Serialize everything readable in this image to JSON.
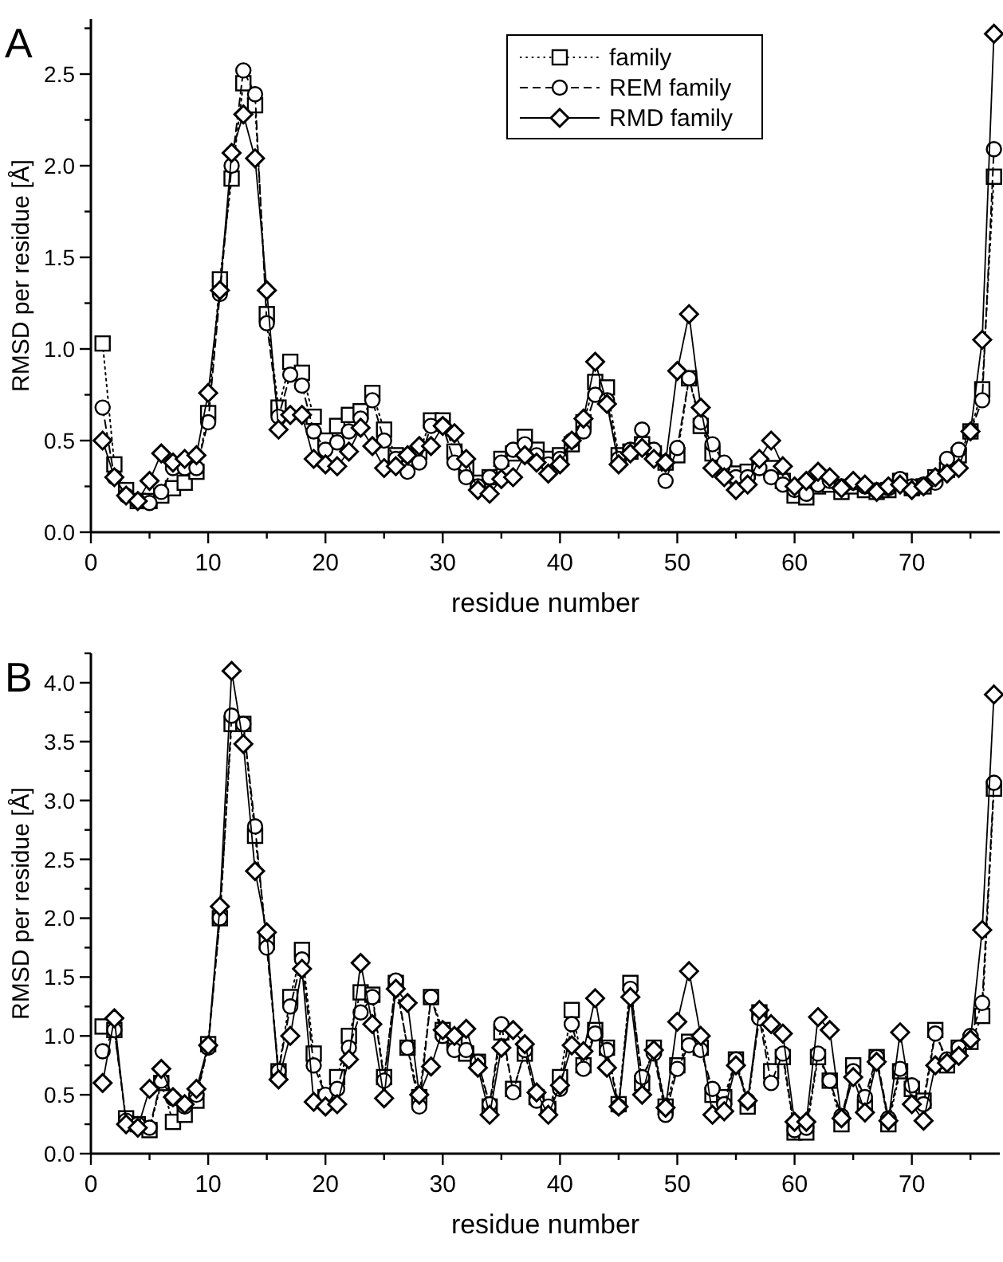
{
  "chart_data": [
    {
      "type": "line",
      "title": "A",
      "xlabel": "residue number",
      "ylabel": "RMSD per residue [Å]",
      "x": [
        1,
        2,
        3,
        4,
        5,
        6,
        7,
        8,
        9,
        10,
        11,
        12,
        13,
        14,
        15,
        16,
        17,
        18,
        19,
        20,
        21,
        22,
        23,
        24,
        25,
        26,
        27,
        28,
        29,
        30,
        31,
        32,
        33,
        34,
        35,
        36,
        37,
        38,
        39,
        40,
        41,
        42,
        43,
        44,
        45,
        46,
        47,
        48,
        49,
        50,
        51,
        52,
        53,
        54,
        55,
        56,
        57,
        58,
        59,
        60,
        61,
        62,
        63,
        64,
        65,
        66,
        67,
        68,
        69,
        70,
        71,
        72,
        73,
        74,
        75,
        76,
        77
      ],
      "xlim": [
        0,
        77.5
      ],
      "xticks": [
        0,
        {
          "value": 5,
          "label": null
        },
        10,
        {
          "value": 15,
          "label": null
        },
        20,
        {
          "value": 25,
          "label": null
        },
        30,
        {
          "value": 35,
          "label": null
        },
        40,
        {
          "value": 45,
          "label": null
        },
        50,
        {
          "value": 55,
          "label": null
        },
        60,
        {
          "value": 65,
          "label": null
        },
        70,
        {
          "value": 75,
          "label": null
        }
      ],
      "ylim": [
        0,
        2.8
      ],
      "yticks": [
        {
          "value": 0,
          "label": "0.0"
        },
        {
          "value": 0.25,
          "label": null
        },
        {
          "value": 0.5,
          "label": "0.5"
        },
        {
          "value": 0.75,
          "label": null
        },
        {
          "value": 1,
          "label": "1.0"
        },
        {
          "value": 1.25,
          "label": null
        },
        {
          "value": 1.5,
          "label": "1.5"
        },
        {
          "value": 1.75,
          "label": null
        },
        {
          "value": 2,
          "label": "2.0"
        },
        {
          "value": 2.25,
          "label": null
        },
        {
          "value": 2.5,
          "label": "2.5"
        },
        {
          "value": 2.75,
          "label": null
        }
      ],
      "grid": false,
      "legend": "top right",
      "series": [
        {
          "name": "family",
          "color": "#000000",
          "marker": "square",
          "line_style": "dotted",
          "values": [
            1.03,
            0.37,
            0.23,
            0.17,
            0.17,
            0.2,
            0.24,
            0.27,
            0.33,
            0.65,
            1.38,
            1.93,
            2.45,
            2.33,
            1.19,
            0.68,
            0.93,
            0.87,
            0.63,
            0.5,
            0.58,
            0.64,
            0.66,
            0.76,
            0.56,
            0.42,
            0.4,
            0.44,
            0.61,
            0.61,
            0.44,
            0.35,
            0.27,
            0.3,
            0.4,
            0.43,
            0.52,
            0.45,
            0.4,
            0.42,
            0.48,
            0.6,
            0.82,
            0.79,
            0.42,
            0.44,
            0.48,
            0.43,
            0.38,
            0.42,
            0.84,
            0.58,
            0.43,
            0.35,
            0.32,
            0.33,
            0.37,
            0.35,
            0.28,
            0.2,
            0.19,
            0.25,
            0.26,
            0.22,
            0.25,
            0.23,
            0.22,
            0.23,
            0.28,
            0.24,
            0.25,
            0.3,
            0.34,
            0.42,
            0.55,
            0.78,
            1.94
          ]
        },
        {
          "name": "REM family",
          "color": "#000000",
          "marker": "circle",
          "line_style": "dashed",
          "values": [
            0.68,
            0.3,
            0.2,
            0.17,
            0.16,
            0.22,
            0.35,
            0.35,
            0.35,
            0.6,
            1.3,
            2.0,
            2.52,
            2.39,
            1.14,
            0.63,
            0.86,
            0.8,
            0.55,
            0.45,
            0.49,
            0.55,
            0.62,
            0.72,
            0.5,
            0.4,
            0.33,
            0.38,
            0.58,
            0.58,
            0.38,
            0.3,
            0.25,
            0.3,
            0.38,
            0.45,
            0.48,
            0.42,
            0.37,
            0.4,
            0.5,
            0.55,
            0.75,
            0.72,
            0.4,
            0.45,
            0.56,
            0.45,
            0.28,
            0.46,
            0.84,
            0.6,
            0.48,
            0.38,
            0.3,
            0.3,
            0.35,
            0.3,
            0.26,
            0.23,
            0.21,
            0.26,
            0.28,
            0.25,
            0.27,
            0.25,
            0.23,
            0.24,
            0.29,
            0.25,
            0.26,
            0.27,
            0.4,
            0.45,
            0.55,
            0.72,
            2.09
          ]
        },
        {
          "name": "RMD family",
          "color": "#000000",
          "marker": "diamond",
          "line_style": "solid",
          "values": [
            0.5,
            0.3,
            0.2,
            0.17,
            0.28,
            0.43,
            0.38,
            0.4,
            0.42,
            0.76,
            1.32,
            2.07,
            2.28,
            2.04,
            1.32,
            0.56,
            0.64,
            0.64,
            0.4,
            0.37,
            0.36,
            0.44,
            0.57,
            0.47,
            0.35,
            0.36,
            0.42,
            0.47,
            0.47,
            0.58,
            0.54,
            0.4,
            0.23,
            0.21,
            0.29,
            0.3,
            0.42,
            0.38,
            0.32,
            0.37,
            0.5,
            0.62,
            0.93,
            0.7,
            0.37,
            0.43,
            0.46,
            0.4,
            0.38,
            0.88,
            1.19,
            0.68,
            0.35,
            0.3,
            0.23,
            0.26,
            0.4,
            0.5,
            0.36,
            0.25,
            0.28,
            0.33,
            0.3,
            0.24,
            0.28,
            0.26,
            0.22,
            0.25,
            0.26,
            0.23,
            0.25,
            0.3,
            0.32,
            0.35,
            0.55,
            1.05,
            2.72
          ]
        }
      ]
    },
    {
      "type": "line",
      "title": "B",
      "xlabel": "residue number",
      "ylabel": "RMSD per residue [Å]",
      "x": [
        1,
        2,
        3,
        4,
        5,
        6,
        7,
        8,
        9,
        10,
        11,
        12,
        13,
        14,
        15,
        16,
        17,
        18,
        19,
        20,
        21,
        22,
        23,
        24,
        25,
        26,
        27,
        28,
        29,
        30,
        31,
        32,
        33,
        34,
        35,
        36,
        37,
        38,
        39,
        40,
        41,
        42,
        43,
        44,
        45,
        46,
        47,
        48,
        49,
        50,
        51,
        52,
        53,
        54,
        55,
        56,
        57,
        58,
        59,
        60,
        61,
        62,
        63,
        64,
        65,
        66,
        67,
        68,
        69,
        70,
        71,
        72,
        73,
        74,
        75,
        76,
        77
      ],
      "xlim": [
        0,
        77.5
      ],
      "xticks": [
        0,
        {
          "value": 5,
          "label": null
        },
        10,
        {
          "value": 15,
          "label": null
        },
        20,
        {
          "value": 25,
          "label": null
        },
        30,
        {
          "value": 35,
          "label": null
        },
        40,
        {
          "value": 45,
          "label": null
        },
        50,
        {
          "value": 55,
          "label": null
        },
        60,
        {
          "value": 65,
          "label": null
        },
        70,
        {
          "value": 75,
          "label": null
        }
      ],
      "ylim": [
        0,
        4.25
      ],
      "yticks": [
        {
          "value": 0,
          "label": "0.0"
        },
        {
          "value": 0.25,
          "label": null
        },
        {
          "value": 0.5,
          "label": "0.5"
        },
        {
          "value": 0.75,
          "label": null
        },
        {
          "value": 1,
          "label": "1.0"
        },
        {
          "value": 1.25,
          "label": null
        },
        {
          "value": 1.5,
          "label": "1.5"
        },
        {
          "value": 1.75,
          "label": null
        },
        {
          "value": 2,
          "label": "2.0"
        },
        {
          "value": 2.25,
          "label": null
        },
        {
          "value": 2.5,
          "label": "2.5"
        },
        {
          "value": 2.75,
          "label": null
        },
        {
          "value": 3,
          "label": "3.0"
        },
        {
          "value": 3.25,
          "label": null
        },
        {
          "value": 3.5,
          "label": "3.5"
        },
        {
          "value": 3.75,
          "label": null
        },
        {
          "value": 4,
          "label": "4.0"
        },
        {
          "value": 4.25,
          "label": null
        }
      ],
      "grid": false,
      "legend": false,
      "series": [
        {
          "color": "#000000",
          "marker": "square",
          "line_style": "dotted",
          "values": [
            1.08,
            1.05,
            0.3,
            0.25,
            0.2,
            0.6,
            0.27,
            0.33,
            0.45,
            0.93,
            2.0,
            3.65,
            3.65,
            2.7,
            1.8,
            0.7,
            1.33,
            1.73,
            0.85,
            0.48,
            0.65,
            1.0,
            1.37,
            1.35,
            0.65,
            1.45,
            0.9,
            0.48,
            1.33,
            1.05,
            0.95,
            0.85,
            0.78,
            0.4,
            1.03,
            0.55,
            0.85,
            0.48,
            0.38,
            0.65,
            1.22,
            0.75,
            1.05,
            0.9,
            0.42,
            1.45,
            0.6,
            0.9,
            0.4,
            0.75,
            0.95,
            0.9,
            0.5,
            0.48,
            0.8,
            0.4,
            1.2,
            0.7,
            0.82,
            0.18,
            0.18,
            0.82,
            0.62,
            0.25,
            0.75,
            0.4,
            0.82,
            0.25,
            0.7,
            0.55,
            0.45,
            1.05,
            0.75,
            0.9,
            0.95,
            1.17,
            3.1
          ]
        },
        {
          "color": "#000000",
          "marker": "circle",
          "line_style": "dashed",
          "values": [
            0.87,
            1.05,
            0.28,
            0.25,
            0.22,
            0.62,
            0.47,
            0.4,
            0.5,
            0.9,
            2.0,
            3.72,
            3.65,
            2.78,
            1.75,
            0.7,
            1.25,
            1.65,
            0.75,
            0.5,
            0.55,
            0.9,
            1.2,
            1.33,
            0.62,
            1.47,
            0.9,
            0.4,
            1.33,
            1.0,
            0.88,
            0.88,
            0.78,
            0.42,
            1.1,
            0.52,
            0.88,
            0.45,
            0.4,
            0.55,
            1.1,
            0.72,
            1.02,
            0.88,
            0.4,
            1.4,
            0.65,
            0.85,
            0.33,
            0.72,
            0.92,
            0.88,
            0.55,
            0.42,
            0.8,
            0.45,
            1.15,
            0.6,
            0.85,
            0.2,
            0.22,
            0.85,
            0.62,
            0.32,
            0.7,
            0.48,
            0.82,
            0.3,
            0.72,
            0.58,
            0.42,
            1.02,
            0.8,
            0.9,
            1.0,
            1.28,
            3.15
          ]
        },
        {
          "color": "#000000",
          "marker": "diamond",
          "line_style": "solid",
          "values": [
            0.6,
            1.15,
            0.25,
            0.22,
            0.55,
            0.72,
            0.48,
            0.42,
            0.55,
            0.92,
            2.1,
            4.1,
            3.48,
            2.4,
            1.88,
            0.63,
            1.0,
            1.57,
            0.44,
            0.4,
            0.42,
            0.8,
            1.62,
            1.1,
            0.47,
            1.4,
            1.28,
            0.5,
            0.74,
            1.05,
            1.0,
            1.06,
            0.73,
            0.33,
            0.9,
            1.05,
            0.93,
            0.52,
            0.33,
            0.58,
            0.92,
            0.87,
            1.32,
            0.73,
            0.4,
            1.33,
            0.5,
            0.88,
            0.39,
            1.12,
            1.55,
            1.0,
            0.33,
            0.36,
            0.75,
            0.45,
            1.22,
            1.1,
            1.02,
            0.27,
            0.27,
            1.16,
            1.05,
            0.3,
            0.65,
            0.35,
            0.78,
            0.28,
            1.03,
            0.42,
            0.28,
            0.75,
            0.77,
            0.83,
            0.97,
            1.9,
            3.9
          ]
        }
      ]
    }
  ]
}
